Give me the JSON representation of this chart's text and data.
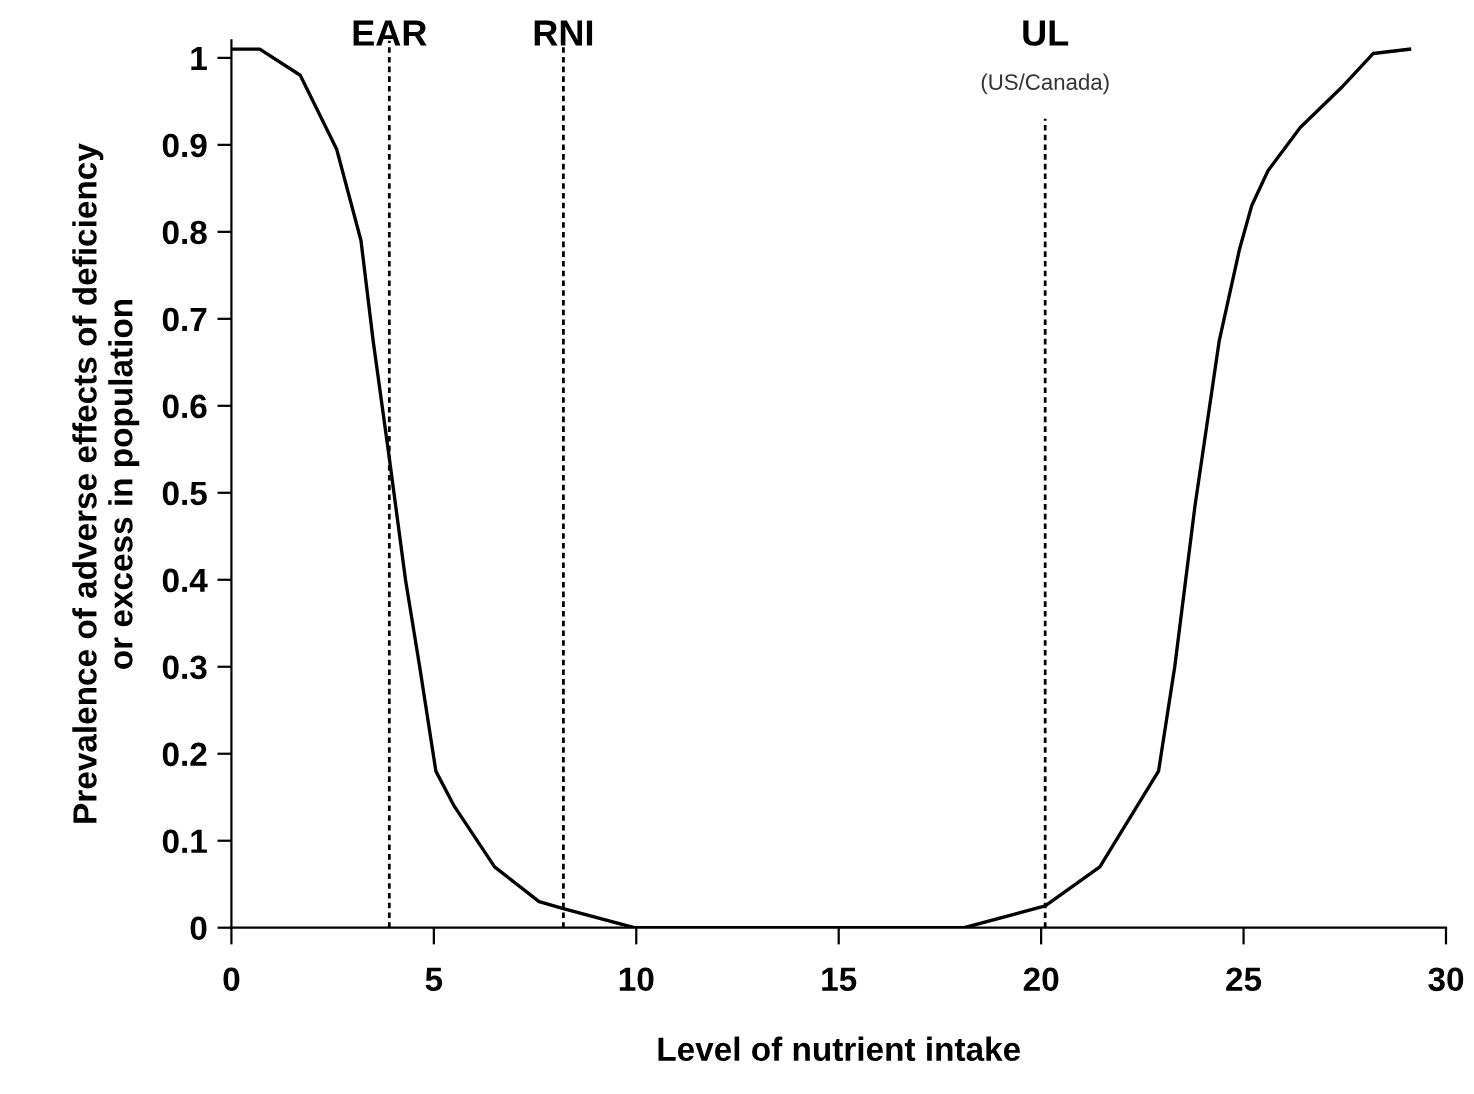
{
  "chart_data": {
    "type": "line",
    "xlabel": "Level of nutrient intake",
    "ylabel": "Prevalence of adverse effects of deficiency\nor excess in population",
    "x": [
      0,
      0.7,
      1.7,
      2.6,
      3.2,
      3.5,
      3.9,
      4.3,
      4.65,
      5.05,
      5.5,
      6.5,
      7.6,
      8.2,
      9.95,
      18.1,
      20.1,
      21.45,
      22.9,
      23.3,
      23.8,
      24.4,
      24.9,
      25.2,
      25.6,
      26.4,
      27.4,
      28.2,
      29.1
    ],
    "series": [
      {
        "color": "#000000",
        "values": [
          1.01,
          1.01,
          0.98,
          0.895,
          0.79,
          0.675,
          0.54,
          0.4,
          0.3,
          0.18,
          0.14,
          0.07,
          0.03,
          0.022,
          0,
          0,
          0.025,
          0.07,
          0.18,
          0.3,
          0.485,
          0.675,
          0.78,
          0.83,
          0.87,
          0.92,
          0.965,
          1.005,
          1.01
        ]
      }
    ],
    "xlim": [
      0,
      30
    ],
    "ylim": [
      0,
      1.02
    ],
    "xticks": [
      0,
      5,
      10,
      15,
      20,
      25,
      30
    ],
    "yticks": [
      0,
      0.1,
      0.2,
      0.3,
      0.4,
      0.5,
      0.6,
      0.7,
      0.8,
      0.9,
      1
    ],
    "ref_lines": [
      {
        "axis": "x",
        "value": 3.9,
        "label": "EAR",
        "line_style": "dashed"
      },
      {
        "axis": "x",
        "value": 8.2,
        "label": "RNI",
        "line_style": "dashed"
      },
      {
        "axis": "x",
        "value": 20.1,
        "label": "UL",
        "line_style": "dashed"
      }
    ],
    "annotations": [
      "(US/Canada)"
    ],
    "grid": false,
    "legend": false
  }
}
